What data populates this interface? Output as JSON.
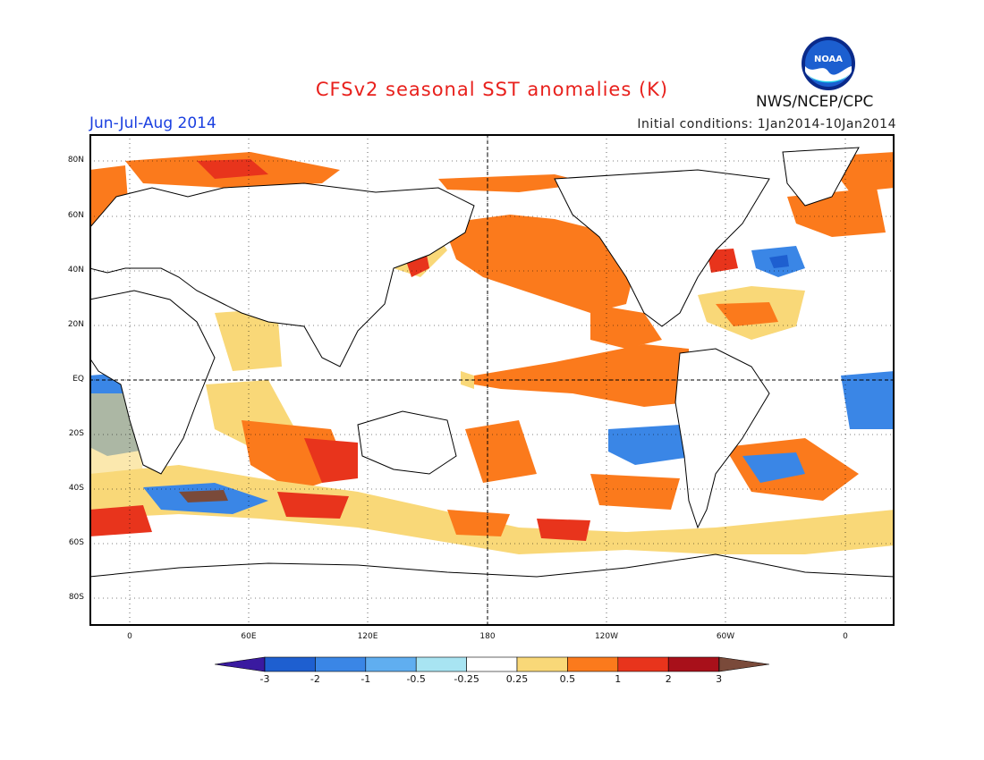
{
  "header": {
    "title": "CFSv2 seasonal SST anomalies (K)",
    "period": "Jun-Jul-Aug 2014",
    "initial_conditions": "Initial conditions: 1Jan2014-10Jan2014",
    "agency": "NWS/NCEP/CPC",
    "logo_text": "NOAA"
  },
  "map": {
    "lat_labels": [
      "80N",
      "60N",
      "40N",
      "20N",
      "EQ",
      "20S",
      "40S",
      "60S",
      "80S"
    ],
    "lon_labels": [
      "0",
      "60E",
      "120E",
      "180",
      "120W",
      "60W",
      "0"
    ]
  },
  "colorbar": {
    "labels": [
      "-3",
      "-2",
      "-1",
      "-0.5",
      "-0.25",
      "0.25",
      "0.5",
      "1",
      "2",
      "3"
    ],
    "colors": [
      "#3a1aa0",
      "#1e5fd0",
      "#3a86e6",
      "#60aef0",
      "#a8e4f2",
      "#ffffff",
      "#f9d878",
      "#fb7a1c",
      "#e8341c",
      "#a8101a",
      "#7a4a3a"
    ]
  }
}
